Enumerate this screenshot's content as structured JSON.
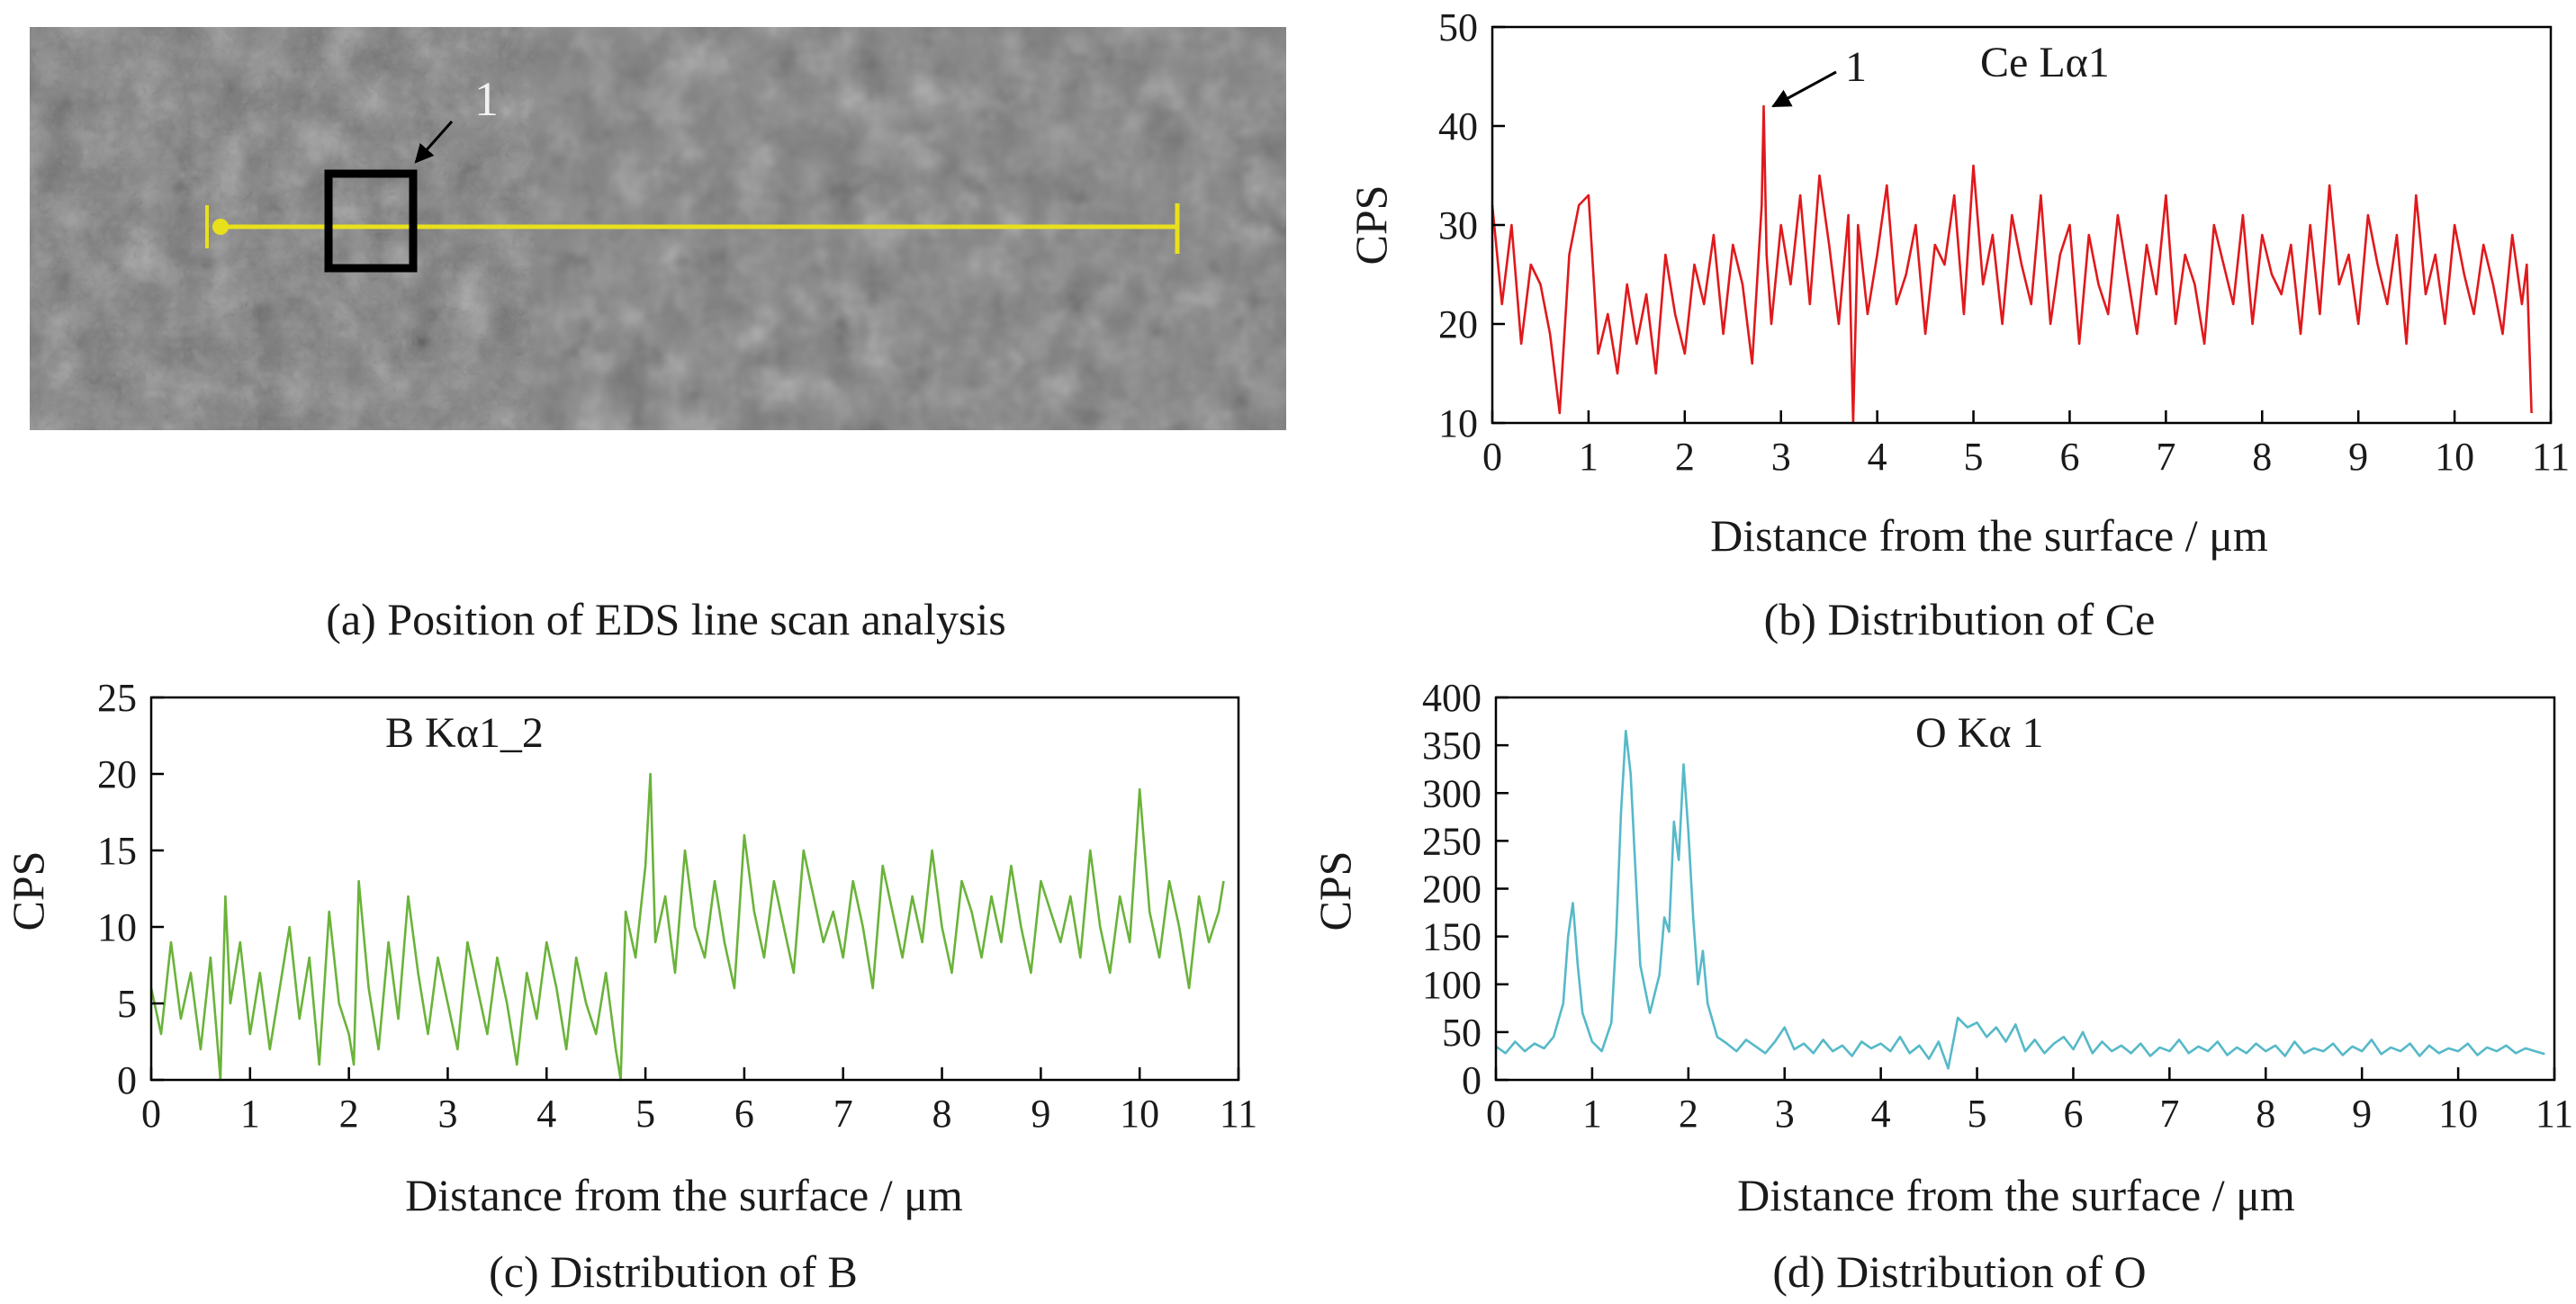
{
  "captions": {
    "a": "(a) Position of EDS line scan analysis",
    "b": "(b) Distribution of Ce",
    "c": "(c) Distribution of B",
    "d": "(d) Distribution of O"
  },
  "sem_image": {
    "marker_label": "1",
    "scan_line_color": "#e9e01c",
    "box_color": "#000000"
  },
  "chart_data": [
    {
      "id": "ce",
      "type": "line",
      "series_label": "Ce Lα1",
      "annotation": "1",
      "xlabel": "Distance from the surface / μm",
      "ylabel": "CPS",
      "xlim": [
        0,
        11
      ],
      "ylim": [
        10,
        50
      ],
      "xticks": [
        0,
        1,
        2,
        3,
        4,
        5,
        6,
        7,
        8,
        9,
        10,
        11
      ],
      "yticks": [
        10,
        20,
        30,
        40,
        50
      ],
      "color": "#e0191c",
      "series": [
        {
          "x": [
            0,
            0.1,
            0.2,
            0.3,
            0.4,
            0.5,
            0.6,
            0.7,
            0.8,
            0.9,
            1.0,
            1.05,
            1.1,
            1.2,
            1.3,
            1.4,
            1.5,
            1.6,
            1.7,
            1.8,
            1.9,
            2.0,
            2.1,
            2.2,
            2.3,
            2.4,
            2.5,
            2.6,
            2.7,
            2.8,
            2.82,
            2.85,
            2.9,
            3.0,
            3.1,
            3.2,
            3.3,
            3.4,
            3.5,
            3.6,
            3.7,
            3.75,
            3.8,
            3.9,
            4.0,
            4.1,
            4.2,
            4.3,
            4.4,
            4.5,
            4.6,
            4.7,
            4.8,
            4.9,
            5.0,
            5.1,
            5.2,
            5.3,
            5.4,
            5.5,
            5.6,
            5.7,
            5.8,
            5.9,
            6.0,
            6.1,
            6.2,
            6.3,
            6.4,
            6.5,
            6.6,
            6.7,
            6.8,
            6.9,
            7.0,
            7.1,
            7.2,
            7.3,
            7.4,
            7.5,
            7.6,
            7.7,
            7.8,
            7.9,
            8.0,
            8.1,
            8.2,
            8.3,
            8.4,
            8.5,
            8.6,
            8.7,
            8.8,
            8.9,
            9.0,
            9.1,
            9.2,
            9.3,
            9.4,
            9.5,
            9.6,
            9.7,
            9.8,
            9.9,
            10.0,
            10.1,
            10.2,
            10.3,
            10.4,
            10.5,
            10.6,
            10.7,
            10.75,
            10.8
          ],
          "y": [
            32,
            22,
            30,
            18,
            26,
            24,
            19,
            11,
            27,
            32,
            33,
            25,
            17,
            21,
            15,
            24,
            18,
            23,
            15,
            27,
            21,
            17,
            26,
            22,
            29,
            19,
            28,
            24,
            16,
            32,
            42,
            27,
            20,
            30,
            24,
            33,
            22,
            35,
            28,
            20,
            31,
            10,
            30,
            21,
            27,
            34,
            22,
            25,
            30,
            19,
            28,
            26,
            33,
            21,
            36,
            24,
            29,
            20,
            31,
            26,
            22,
            33,
            20,
            27,
            30,
            18,
            29,
            24,
            21,
            31,
            25,
            19,
            28,
            23,
            33,
            20,
            27,
            24,
            18,
            30,
            26,
            22,
            31,
            20,
            29,
            25,
            23,
            28,
            19,
            30,
            21,
            34,
            24,
            27,
            20,
            31,
            26,
            22,
            29,
            18,
            33,
            23,
            27,
            20,
            30,
            25,
            21,
            28,
            24,
            19,
            29,
            22,
            26,
            11
          ]
        }
      ]
    },
    {
      "id": "b",
      "type": "line",
      "series_label": "B Kα1_2",
      "xlabel": "Distance from the surface / μm",
      "ylabel": "CPS",
      "xlim": [
        0,
        11
      ],
      "ylim": [
        0,
        25
      ],
      "xticks": [
        0,
        1,
        2,
        3,
        4,
        5,
        6,
        7,
        8,
        9,
        10,
        11
      ],
      "yticks": [
        0,
        5,
        10,
        15,
        20,
        25
      ],
      "color": "#6ab33a",
      "series": [
        {
          "x": [
            0,
            0.1,
            0.2,
            0.3,
            0.4,
            0.5,
            0.6,
            0.7,
            0.75,
            0.8,
            0.9,
            1.0,
            1.1,
            1.2,
            1.3,
            1.4,
            1.5,
            1.6,
            1.7,
            1.8,
            1.9,
            2.0,
            2.05,
            2.1,
            2.2,
            2.3,
            2.4,
            2.5,
            2.6,
            2.7,
            2.8,
            2.9,
            3.0,
            3.1,
            3.2,
            3.3,
            3.4,
            3.5,
            3.6,
            3.7,
            3.8,
            3.9,
            4.0,
            4.1,
            4.2,
            4.3,
            4.4,
            4.5,
            4.6,
            4.7,
            4.75,
            4.8,
            4.9,
            5.0,
            5.05,
            5.1,
            5.2,
            5.3,
            5.4,
            5.5,
            5.6,
            5.7,
            5.8,
            5.9,
            6.0,
            6.1,
            6.2,
            6.3,
            6.4,
            6.5,
            6.6,
            6.7,
            6.8,
            6.9,
            7.0,
            7.1,
            7.2,
            7.3,
            7.4,
            7.5,
            7.6,
            7.7,
            7.8,
            7.9,
            8.0,
            8.1,
            8.2,
            8.3,
            8.4,
            8.5,
            8.6,
            8.7,
            8.8,
            8.9,
            9.0,
            9.1,
            9.2,
            9.3,
            9.4,
            9.5,
            9.6,
            9.7,
            9.8,
            9.9,
            10.0,
            10.1,
            10.2,
            10.3,
            10.4,
            10.5,
            10.6,
            10.7,
            10.8,
            10.85
          ],
          "y": [
            6,
            3,
            9,
            4,
            7,
            2,
            8,
            0,
            12,
            5,
            9,
            3,
            7,
            2,
            6,
            10,
            4,
            8,
            1,
            11,
            5,
            3,
            1,
            13,
            6,
            2,
            9,
            4,
            12,
            7,
            3,
            8,
            5,
            2,
            9,
            6,
            3,
            8,
            5,
            1,
            7,
            4,
            9,
            6,
            2,
            8,
            5,
            3,
            7,
            2,
            0,
            11,
            8,
            14,
            20,
            9,
            12,
            7,
            15,
            10,
            8,
            13,
            9,
            6,
            16,
            11,
            8,
            13,
            10,
            7,
            15,
            12,
            9,
            11,
            8,
            13,
            10,
            6,
            14,
            11,
            8,
            12,
            9,
            15,
            10,
            7,
            13,
            11,
            8,
            12,
            9,
            14,
            10,
            7,
            13,
            11,
            9,
            12,
            8,
            15,
            10,
            7,
            12,
            9,
            19,
            11,
            8,
            13,
            10,
            6,
            12,
            9,
            11,
            13
          ]
        }
      ]
    },
    {
      "id": "o",
      "type": "line",
      "series_label": "O Kα 1",
      "xlabel": "Distance from the surface / μm",
      "ylabel": "CPS",
      "xlim": [
        0,
        11
      ],
      "ylim": [
        0,
        400
      ],
      "xticks": [
        0,
        1,
        2,
        3,
        4,
        5,
        6,
        7,
        8,
        9,
        10,
        11
      ],
      "yticks": [
        0,
        50,
        100,
        150,
        200,
        250,
        300,
        350,
        400
      ],
      "color": "#56b9c8",
      "series": [
        {
          "x": [
            0,
            0.1,
            0.2,
            0.3,
            0.4,
            0.5,
            0.6,
            0.7,
            0.75,
            0.8,
            0.85,
            0.9,
            1.0,
            1.1,
            1.2,
            1.25,
            1.3,
            1.35,
            1.4,
            1.45,
            1.5,
            1.6,
            1.7,
            1.75,
            1.8,
            1.85,
            1.9,
            1.95,
            2.0,
            2.05,
            2.1,
            2.15,
            2.2,
            2.3,
            2.4,
            2.5,
            2.6,
            2.7,
            2.8,
            2.9,
            3.0,
            3.1,
            3.2,
            3.3,
            3.4,
            3.5,
            3.6,
            3.7,
            3.8,
            3.9,
            4.0,
            4.1,
            4.2,
            4.3,
            4.4,
            4.5,
            4.6,
            4.7,
            4.8,
            4.9,
            5.0,
            5.1,
            5.2,
            5.3,
            5.4,
            5.5,
            5.6,
            5.7,
            5.8,
            5.9,
            6.0,
            6.1,
            6.2,
            6.3,
            6.4,
            6.5,
            6.6,
            6.7,
            6.8,
            6.9,
            7.0,
            7.1,
            7.2,
            7.3,
            7.4,
            7.5,
            7.6,
            7.7,
            7.8,
            7.9,
            8.0,
            8.1,
            8.2,
            8.3,
            8.4,
            8.5,
            8.6,
            8.7,
            8.8,
            8.9,
            9.0,
            9.1,
            9.2,
            9.3,
            9.4,
            9.5,
            9.6,
            9.7,
            9.8,
            9.9,
            10.0,
            10.1,
            10.2,
            10.3,
            10.4,
            10.5,
            10.6,
            10.7,
            10.8,
            10.9
          ],
          "y": [
            35,
            28,
            40,
            30,
            38,
            33,
            45,
            80,
            150,
            185,
            120,
            70,
            40,
            30,
            60,
            150,
            280,
            365,
            320,
            220,
            120,
            70,
            110,
            170,
            155,
            270,
            230,
            330,
            260,
            170,
            100,
            135,
            80,
            45,
            38,
            30,
            42,
            35,
            28,
            40,
            55,
            32,
            38,
            28,
            42,
            30,
            36,
            25,
            40,
            33,
            38,
            30,
            45,
            28,
            36,
            22,
            40,
            12,
            65,
            55,
            60,
            45,
            55,
            40,
            58,
            30,
            42,
            28,
            38,
            45,
            32,
            50,
            28,
            40,
            30,
            36,
            28,
            38,
            25,
            34,
            30,
            42,
            28,
            35,
            30,
            40,
            26,
            34,
            28,
            38,
            30,
            36,
            25,
            40,
            28,
            33,
            30,
            38,
            26,
            35,
            30,
            42,
            27,
            34,
            30,
            38,
            25,
            36,
            28,
            33,
            30,
            38,
            26,
            34,
            30,
            36,
            28,
            33,
            30,
            27
          ]
        }
      ]
    }
  ]
}
